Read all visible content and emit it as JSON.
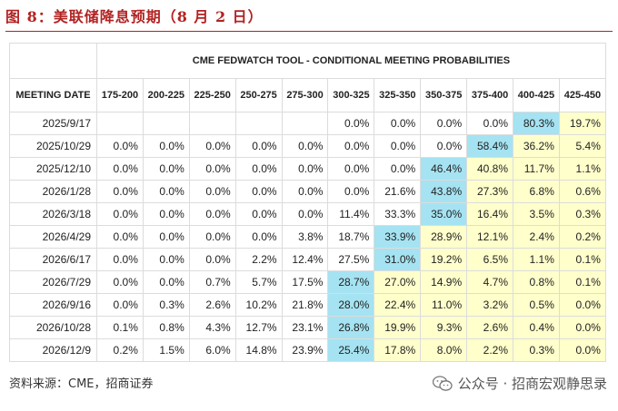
{
  "figure": {
    "title": "图 8：美联储降息预期（8 月 2 日）"
  },
  "table": {
    "tool_title": "CME FEDWATCH TOOL - CONDITIONAL MEETING PROBABILITIES",
    "date_header": "MEETING DATE",
    "rate_headers": [
      "175-200",
      "200-225",
      "225-250",
      "250-275",
      "275-300",
      "300-325",
      "325-350",
      "350-375",
      "375-400",
      "400-425",
      "425-450"
    ],
    "rows": [
      {
        "date": "2025/9/17",
        "values": [
          "",
          "",
          "",
          "",
          "",
          "0.0%",
          "0.0%",
          "0.0%",
          "0.0%",
          "80.3%",
          "19.7%"
        ]
      },
      {
        "date": "2025/10/29",
        "values": [
          "0.0%",
          "0.0%",
          "0.0%",
          "0.0%",
          "0.0%",
          "0.0%",
          "0.0%",
          "0.0%",
          "58.4%",
          "36.2%",
          "5.4%"
        ]
      },
      {
        "date": "2025/12/10",
        "values": [
          "0.0%",
          "0.0%",
          "0.0%",
          "0.0%",
          "0.0%",
          "0.0%",
          "0.0%",
          "46.4%",
          "40.8%",
          "11.7%",
          "1.1%"
        ]
      },
      {
        "date": "2026/1/28",
        "values": [
          "0.0%",
          "0.0%",
          "0.0%",
          "0.0%",
          "0.0%",
          "0.0%",
          "21.6%",
          "43.8%",
          "27.3%",
          "6.8%",
          "0.6%"
        ]
      },
      {
        "date": "2026/3/18",
        "values": [
          "0.0%",
          "0.0%",
          "0.0%",
          "0.0%",
          "0.0%",
          "11.4%",
          "33.3%",
          "35.0%",
          "16.4%",
          "3.5%",
          "0.3%"
        ]
      },
      {
        "date": "2026/4/29",
        "values": [
          "0.0%",
          "0.0%",
          "0.0%",
          "0.0%",
          "3.8%",
          "18.7%",
          "33.9%",
          "28.9%",
          "12.1%",
          "2.4%",
          "0.2%"
        ]
      },
      {
        "date": "2026/6/17",
        "values": [
          "0.0%",
          "0.0%",
          "0.0%",
          "2.2%",
          "12.4%",
          "27.5%",
          "31.0%",
          "19.2%",
          "6.5%",
          "1.1%",
          "0.1%"
        ]
      },
      {
        "date": "2026/7/29",
        "values": [
          "0.0%",
          "0.0%",
          "0.7%",
          "5.7%",
          "17.5%",
          "28.7%",
          "27.0%",
          "14.9%",
          "4.7%",
          "0.8%",
          "0.1%"
        ]
      },
      {
        "date": "2026/9/16",
        "values": [
          "0.0%",
          "0.3%",
          "2.6%",
          "10.2%",
          "21.8%",
          "28.0%",
          "22.4%",
          "11.0%",
          "3.2%",
          "0.5%",
          "0.0%"
        ]
      },
      {
        "date": "2026/10/28",
        "values": [
          "0.1%",
          "0.8%",
          "4.3%",
          "12.7%",
          "23.1%",
          "26.8%",
          "19.9%",
          "9.3%",
          "2.6%",
          "0.4%",
          "0.0%"
        ]
      },
      {
        "date": "2026/12/9",
        "values": [
          "0.2%",
          "1.5%",
          "6.0%",
          "14.8%",
          "23.9%",
          "25.4%",
          "17.8%",
          "8.0%",
          "2.2%",
          "0.3%",
          "0.0%"
        ]
      }
    ],
    "highlight_cyan": [
      [
        0,
        9
      ],
      [
        1,
        8
      ],
      [
        2,
        7
      ],
      [
        3,
        7
      ],
      [
        4,
        7
      ],
      [
        5,
        6
      ],
      [
        6,
        6
      ],
      [
        7,
        5
      ],
      [
        8,
        5
      ],
      [
        9,
        5
      ],
      [
        10,
        5
      ]
    ],
    "highlight_yellow_from_col": [
      10,
      9,
      8,
      8,
      8,
      7,
      7,
      6,
      6,
      6,
      6
    ],
    "colors": {
      "cyan": "#a5e3f2",
      "yellow": "#ffffcc"
    }
  },
  "footer": {
    "source": "资料来源：CME，招商证券",
    "watermark": "公众号 · 招商宏观静思录",
    "watermark_icon": "wechat-icon"
  }
}
